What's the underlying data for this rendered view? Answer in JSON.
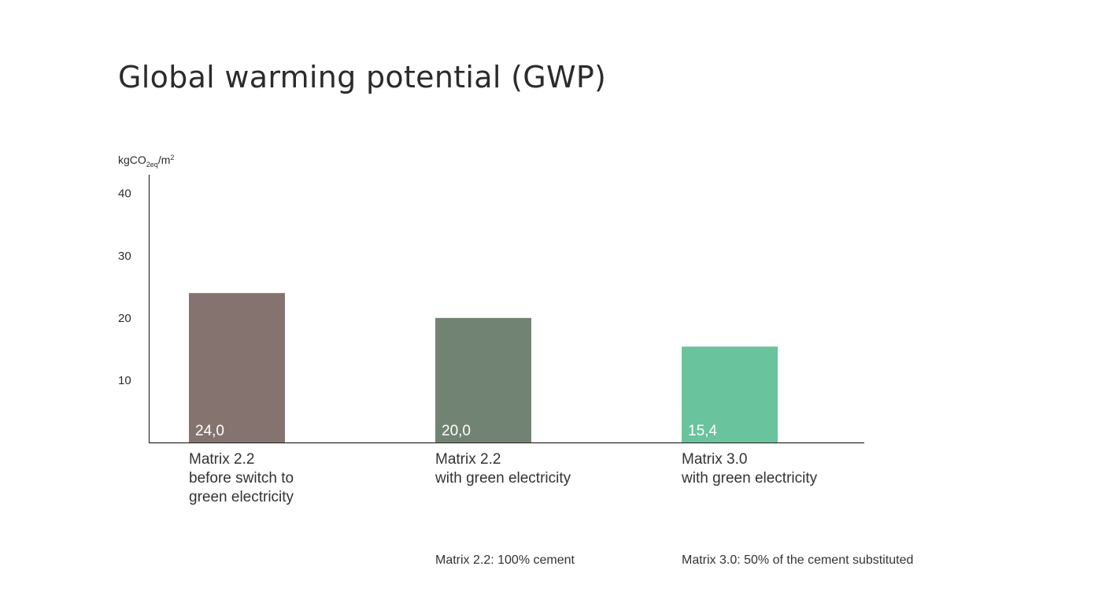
{
  "chart_data": {
    "type": "bar",
    "title": "Global warming potential (GWP)",
    "ylabel": {
      "base": "kgCO",
      "subscript": "2eq",
      "slash": "/m",
      "superscript": "2"
    },
    "ylim": [
      0,
      43
    ],
    "yticks": [
      10,
      20,
      30,
      40
    ],
    "grid": false,
    "categories": [
      [
        "Matrix 2.2",
        "before switch to",
        "green electricity"
      ],
      [
        "Matrix 2.2",
        "with green electricity"
      ],
      [
        "Matrix 3.0",
        "with green electricity"
      ]
    ],
    "values": [
      24.0,
      20.0,
      15.4
    ],
    "value_labels": [
      "24,0",
      "20,0",
      "15,4"
    ],
    "colors": [
      "#85736f",
      "#718373",
      "#69c39d"
    ],
    "notes": [
      {
        "category_index": 1,
        "text": "Matrix 2.2: 100% cement"
      },
      {
        "category_index": 2,
        "text": "Matrix 3.0: 50% of the cement substituted"
      }
    ]
  }
}
